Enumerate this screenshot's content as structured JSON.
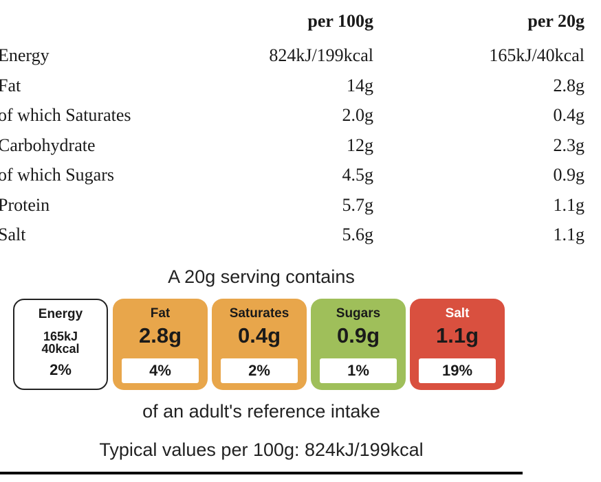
{
  "table": {
    "header": {
      "per100": "per 100g",
      "perServing": "per 20g"
    },
    "rows": [
      {
        "label": "Energy",
        "per100": "824kJ/199kcal",
        "perServing": "165kJ/40kcal"
      },
      {
        "label": "Fat",
        "per100": "14g",
        "perServing": "2.8g"
      },
      {
        "label": "of which Saturates",
        "per100": "2.0g",
        "perServing": "0.4g"
      },
      {
        "label": "Carbohydrate",
        "per100": "12g",
        "perServing": "2.3g"
      },
      {
        "label": "of which Sugars",
        "per100": "4.5g",
        "perServing": "0.9g"
      },
      {
        "label": "Protein",
        "per100": "5.7g",
        "perServing": "1.1g"
      },
      {
        "label": "Salt",
        "per100": "5.6g",
        "perServing": "1.1g"
      }
    ]
  },
  "label": {
    "heading": "A 20g serving contains",
    "energy": {
      "title": "Energy",
      "kj": "165kJ",
      "kcal": "40kcal",
      "pct": "2%"
    },
    "fat": {
      "title": "Fat",
      "value": "2.8g",
      "pct": "4%",
      "color": "#e8a64b"
    },
    "saturates": {
      "title": "Saturates",
      "value": "0.4g",
      "pct": "2%",
      "color": "#e8a64b"
    },
    "sugars": {
      "title": "Sugars",
      "value": "0.9g",
      "pct": "1%",
      "color": "#9fbf5a"
    },
    "salt": {
      "title": "Salt",
      "value": "1.1g",
      "pct": "19%",
      "color": "#d9503f"
    },
    "reference_note": "of an adult's reference intake",
    "typical_values": "Typical values per 100g: 824kJ/199kcal"
  }
}
